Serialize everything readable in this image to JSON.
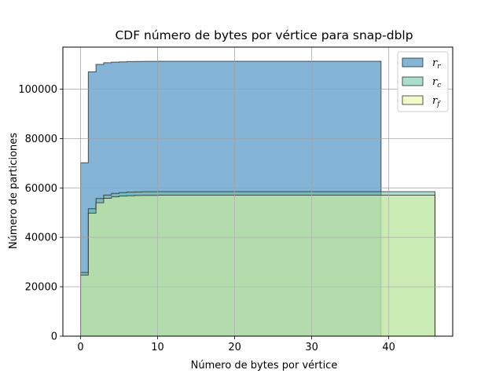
{
  "chart_data": {
    "type": "area",
    "title": "CDF número de bytes por vértice para snap-dblp",
    "xlabel": "Número de bytes por vértice",
    "ylabel": "Número de particiones",
    "xlim": [
      -2.3,
      48.3
    ],
    "ylim": [
      0,
      117000
    ],
    "xticks": [
      0,
      10,
      20,
      30,
      40
    ],
    "yticks": [
      0,
      20000,
      40000,
      60000,
      80000,
      100000
    ],
    "grid": true,
    "legend_position": "top-right",
    "colors": {
      "r_r": "#1f77b4",
      "r_c": "#66c2a5",
      "r_f": "#e5f5a0"
    },
    "series": [
      {
        "name": "r_r",
        "legend_base": "r",
        "legend_sub": "r",
        "color": "#1f77b4",
        "x": [
          0,
          1,
          2,
          3,
          4,
          5,
          6,
          7,
          8,
          9,
          10,
          39
        ],
        "y": [
          70200,
          107000,
          110000,
          110700,
          110900,
          111050,
          111150,
          111200,
          111230,
          111250,
          111260,
          111260
        ]
      },
      {
        "name": "r_c",
        "legend_base": "r",
        "legend_sub": "c",
        "color": "#66c2a5",
        "x": [
          0,
          1,
          2,
          3,
          4,
          5,
          6,
          7,
          8,
          10,
          46
        ],
        "y": [
          25800,
          51600,
          55700,
          57100,
          57800,
          58100,
          58300,
          58400,
          58450,
          58500,
          58500
        ]
      },
      {
        "name": "r_f",
        "legend_base": "r",
        "legend_sub": "f",
        "color": "#e5f5a0",
        "x": [
          0,
          1,
          2,
          3,
          4,
          5,
          6,
          7,
          8,
          10,
          46
        ],
        "y": [
          24700,
          49800,
          54000,
          55800,
          56400,
          56700,
          56850,
          56950,
          57000,
          57050,
          57050
        ]
      }
    ]
  }
}
